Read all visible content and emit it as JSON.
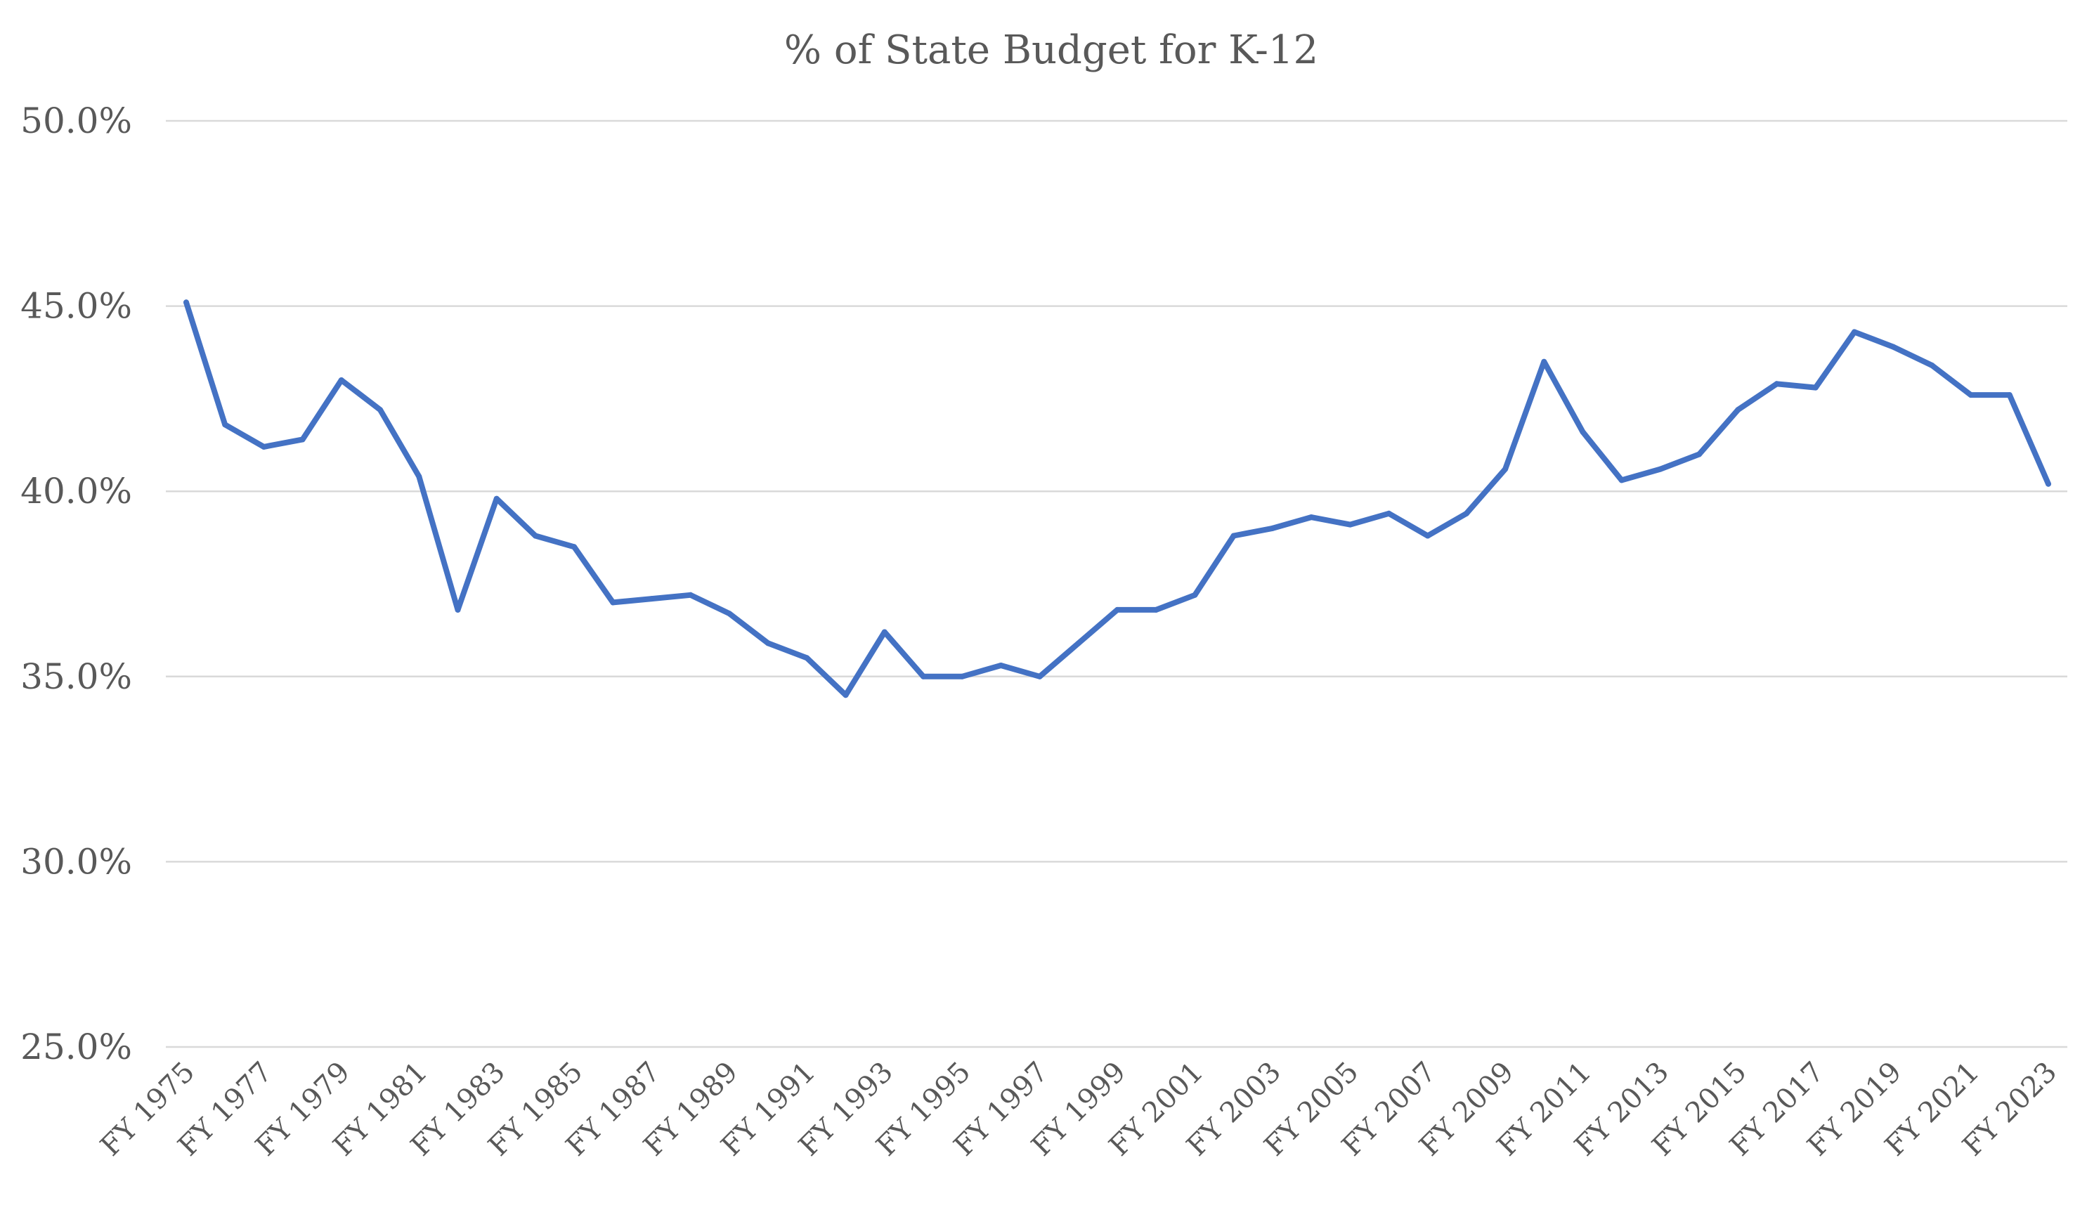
{
  "chart_data": {
    "type": "line",
    "title": "% of State Budget for K-12",
    "xlabel": "",
    "ylabel": "",
    "ylim": [
      25,
      50
    ],
    "yticks": [
      25,
      30,
      35,
      40,
      45,
      50
    ],
    "ytick_labels": [
      "25.0%",
      "30.0%",
      "35.0%",
      "40.0%",
      "45.0%",
      "50.0%"
    ],
    "grid": true,
    "legend": "none",
    "x": [
      "FY 1975",
      "FY 1976",
      "FY 1977",
      "FY 1978",
      "FY 1979",
      "FY 1980",
      "FY 1981",
      "FY 1982",
      "FY 1983",
      "FY 1984",
      "FY 1985",
      "FY 1986",
      "FY 1987",
      "FY 1988",
      "FY 1989",
      "FY 1990",
      "FY 1991",
      "FY 1992",
      "FY 1993",
      "FY 1994",
      "FY 1995",
      "FY 1996",
      "FY 1997",
      "FY 1998",
      "FY 1999",
      "FY 2000",
      "FY 2001",
      "FY 2002",
      "FY 2003",
      "FY 2004",
      "FY 2005",
      "FY 2006",
      "FY 2007",
      "FY 2008",
      "FY 2009",
      "FY 2010",
      "FY 2011",
      "FY 2012",
      "FY 2013",
      "FY 2014",
      "FY 2015",
      "FY 2016",
      "FY 2017",
      "FY 2018",
      "FY 2019",
      "FY 2020",
      "FY 2021",
      "FY 2022",
      "FY 2023"
    ],
    "visible_x_labels": [
      "FY 1975",
      "FY 1977",
      "FY 1979",
      "FY 1981",
      "FY 1983",
      "FY 1985",
      "FY 1987",
      "FY 1989",
      "FY 1991",
      "FY 1993",
      "FY 1995",
      "FY 1997",
      "FY 1999",
      "FY 2001",
      "FY 2003",
      "FY 2005",
      "FY 2007",
      "FY 2009",
      "FY 2011",
      "FY 2013",
      "FY 2015",
      "FY 2017",
      "FY 2019",
      "FY 2021",
      "FY 2023"
    ],
    "series": [
      {
        "color": "#4472c4",
        "values": [
          45.1,
          41.8,
          41.2,
          41.4,
          43.0,
          42.2,
          40.4,
          36.8,
          39.8,
          38.8,
          38.5,
          37.0,
          37.1,
          37.2,
          36.7,
          35.9,
          35.5,
          34.5,
          36.2,
          35.0,
          35.0,
          35.3,
          35.0,
          35.9,
          36.8,
          36.8,
          37.2,
          38.8,
          39.0,
          39.3,
          39.1,
          39.4,
          38.8,
          39.4,
          40.6,
          43.5,
          41.6,
          40.3,
          40.6,
          41.0,
          42.2,
          42.9,
          42.8,
          44.3,
          43.9,
          43.4,
          42.6,
          42.6,
          40.2
        ]
      }
    ]
  }
}
